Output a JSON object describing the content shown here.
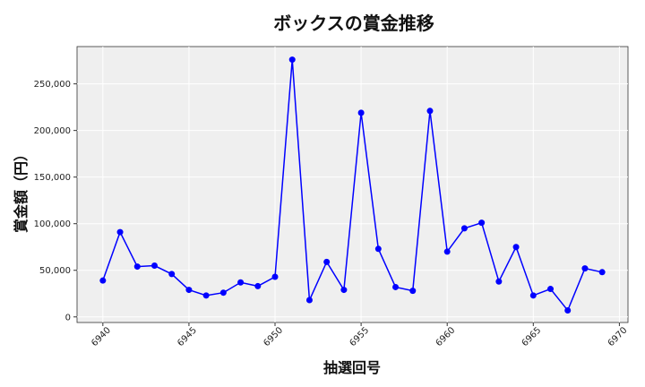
{
  "chart_data": {
    "type": "line",
    "title": "ボックスの賞金推移",
    "xlabel": "抽選回号",
    "ylabel": "賞金額（円）",
    "xlim": [
      6938.5,
      6970.5
    ],
    "ylim": [
      -6000,
      290000
    ],
    "x_ticks": [
      6940,
      6945,
      6950,
      6955,
      6960,
      6965,
      6970
    ],
    "y_ticks": [
      0,
      50000,
      100000,
      150000,
      200000,
      250000
    ],
    "y_tick_labels": [
      "0",
      "50,000",
      "100,000",
      "150,000",
      "200,000",
      "250,000"
    ],
    "grid": true,
    "series": [
      {
        "color": "#0000ff",
        "x": [
          6940,
          6941,
          6942,
          6943,
          6944,
          6945,
          6946,
          6947,
          6948,
          6949,
          6950,
          6951,
          6952,
          6953,
          6954,
          6955,
          6956,
          6957,
          6958,
          6959,
          6960,
          6961,
          6962,
          6963,
          6964,
          6965,
          6966,
          6967,
          6968,
          6969
        ],
        "y": [
          39000,
          91000,
          54000,
          55000,
          46000,
          29000,
          23000,
          26000,
          37000,
          33000,
          43000,
          276000,
          18000,
          59000,
          29000,
          219000,
          73000,
          32000,
          28000,
          221000,
          70000,
          95000,
          101000,
          38000,
          75000,
          23000,
          30000,
          7000,
          52000,
          48000
        ]
      }
    ]
  }
}
